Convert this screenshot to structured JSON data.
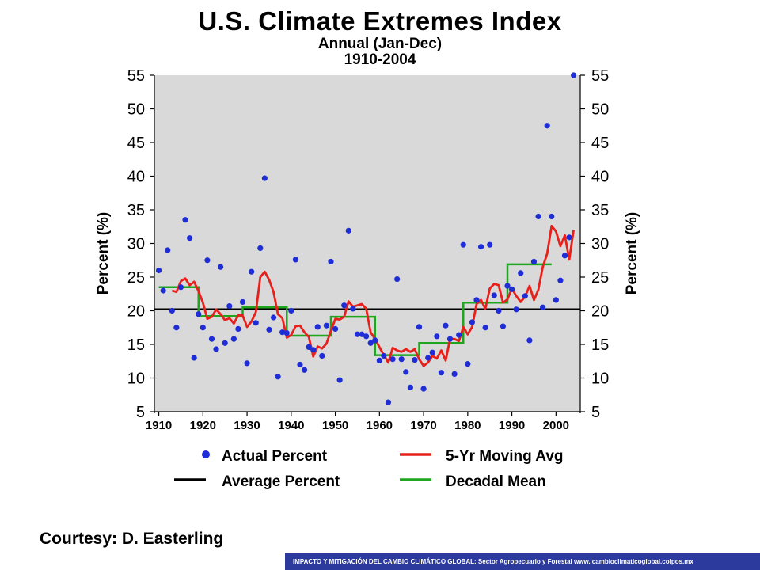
{
  "chart_data": {
    "type": "scatter",
    "title": "U.S. Climate Extremes Index",
    "subtitle": "Annual (Jan-Dec)",
    "period": "1910-2004",
    "ylabel": "Percent (%)",
    "ylabel_right": "Percent (%)",
    "xlabel": "",
    "xlim": [
      1909,
      2005.5
    ],
    "ylim": [
      5,
      55
    ],
    "x_ticks": [
      1910,
      1920,
      1930,
      1940,
      1950,
      1960,
      1970,
      1980,
      1990,
      2000
    ],
    "y_ticks": [
      5,
      10,
      15,
      20,
      25,
      30,
      35,
      40,
      45,
      50,
      55
    ],
    "grid": false,
    "legend_position": "bottom",
    "colors": {
      "plot_background": "#d9d9d9",
      "actual": "#1f2dd6",
      "moving_avg": "#e8201c",
      "average": "#000000",
      "decadal": "#1fa51f"
    },
    "legend": [
      {
        "key": "actual",
        "label": "Actual Percent",
        "style": "dot"
      },
      {
        "key": "moving_avg",
        "label": "5-Yr Moving Avg",
        "style": "line"
      },
      {
        "key": "average",
        "label": "Average Percent",
        "style": "line"
      },
      {
        "key": "decadal",
        "label": "Decadal Mean",
        "style": "line"
      }
    ],
    "average_percent": 20.2,
    "series": [
      {
        "name": "Actual Percent",
        "x": [
          1910,
          1911,
          1912,
          1913,
          1914,
          1915,
          1916,
          1917,
          1918,
          1919,
          1920,
          1921,
          1922,
          1923,
          1924,
          1925,
          1926,
          1927,
          1928,
          1929,
          1930,
          1931,
          1932,
          1933,
          1934,
          1935,
          1936,
          1937,
          1938,
          1939,
          1940,
          1941,
          1942,
          1943,
          1944,
          1945,
          1946,
          1947,
          1948,
          1949,
          1950,
          1951,
          1952,
          1953,
          1954,
          1955,
          1956,
          1957,
          1958,
          1959,
          1960,
          1961,
          1962,
          1963,
          1964,
          1965,
          1966,
          1967,
          1968,
          1969,
          1970,
          1971,
          1972,
          1973,
          1974,
          1975,
          1976,
          1977,
          1978,
          1979,
          1980,
          1981,
          1982,
          1983,
          1984,
          1985,
          1986,
          1987,
          1988,
          1989,
          1990,
          1991,
          1992,
          1993,
          1994,
          1995,
          1996,
          1997,
          1998,
          1999,
          2000,
          2001,
          2002,
          2003,
          2004
        ],
        "values": [
          26,
          23,
          29,
          20,
          17.5,
          23.5,
          33.5,
          30.8,
          13,
          19.5,
          17.5,
          27.5,
          15.8,
          14.3,
          26.5,
          15.2,
          20.7,
          15.8,
          17.3,
          21.3,
          12.2,
          25.8,
          18.2,
          29.3,
          39.7,
          17.2,
          19,
          10.2,
          16.8,
          16.7,
          20,
          27.6,
          12,
          11.2,
          14.6,
          14.2,
          17.6,
          13.3,
          17.8,
          27.3,
          17.3,
          9.7,
          20.8,
          31.9,
          20.3,
          16.5,
          16.5,
          16.2,
          15.2,
          15.6,
          12.6,
          13.3,
          6.4,
          12.8,
          24.7,
          12.8,
          10.9,
          8.6,
          12.7,
          17.6,
          8.4,
          13,
          13.8,
          16.2,
          10.8,
          17.8,
          15.8,
          10.6,
          16.4,
          29.8,
          12.1,
          18.3,
          21.6,
          29.5,
          17.5,
          29.8,
          22.3,
          20,
          17.7,
          23.7,
          23.2,
          20.2,
          25.6,
          22.2,
          15.6,
          27.3,
          34,
          20.5,
          47.5,
          34,
          21.6,
          24.5,
          28.2,
          30.9,
          55
        ]
      },
      {
        "name": "5-Yr Moving Avg",
        "x": [
          1913,
          1914,
          1915,
          1916,
          1917,
          1918,
          1919,
          1920,
          1921,
          1922,
          1923,
          1924,
          1925,
          1926,
          1927,
          1928,
          1929,
          1930,
          1931,
          1932,
          1933,
          1934,
          1935,
          1936,
          1937,
          1938,
          1939,
          1940,
          1941,
          1942,
          1943,
          1944,
          1945,
          1946,
          1947,
          1948,
          1949,
          1950,
          1951,
          1952,
          1953,
          1954,
          1955,
          1956,
          1957,
          1958,
          1959,
          1960,
          1961,
          1962,
          1963,
          1964,
          1965,
          1966,
          1967,
          1968,
          1969,
          1970,
          1971,
          1972,
          1973,
          1974,
          1975,
          1976,
          1977,
          1978,
          1979,
          1980,
          1981,
          1982,
          1983,
          1984,
          1985,
          1986,
          1987,
          1988,
          1989,
          1990,
          1991,
          1992,
          1993,
          1994,
          1995,
          1996,
          1997,
          1998,
          1999,
          2000,
          2001,
          2002,
          2003,
          2004
        ],
        "values": [
          23,
          22.8,
          24.4,
          24.8,
          23.8,
          24.3,
          22.9,
          21.2,
          18.8,
          19.1,
          20.2,
          19.5,
          18.6,
          18.9,
          18.1,
          19.3,
          19.3,
          17.6,
          18.4,
          19.8,
          25,
          25.8,
          24.6,
          22.8,
          19.5,
          18.9,
          16,
          16.4,
          17.7,
          17.8,
          16.8,
          16.1,
          13.2,
          14.7,
          14.4,
          15.1,
          17,
          18.8,
          18.7,
          19.1,
          21.4,
          20.6,
          20.8,
          21,
          20.3,
          16.8,
          15.8,
          14.6,
          13.4,
          12.3,
          14.5,
          14.1,
          13.9,
          14.3,
          13.9,
          14.3,
          12.8,
          11.8,
          12.3,
          13.3,
          12.9,
          14.1,
          12.6,
          15.8,
          15.8,
          15.5,
          17.6,
          16.5,
          17.6,
          21,
          21.6,
          20.3,
          23.3,
          24,
          23.8,
          21.2,
          21.7,
          23.3,
          22.2,
          21.3,
          22.1,
          23.7,
          21.6,
          23.1,
          26.5,
          28.5,
          32.6,
          31.8,
          29.6,
          31.2,
          27.6,
          32
        ]
      },
      {
        "name": "Decadal Mean",
        "segments": [
          {
            "from": 1910,
            "to": 1919,
            "value": 23.5
          },
          {
            "from": 1919,
            "to": 1929,
            "value": 19.2
          },
          {
            "from": 1929,
            "to": 1939,
            "value": 20.5
          },
          {
            "from": 1939,
            "to": 1949,
            "value": 16.3
          },
          {
            "from": 1949,
            "to": 1959,
            "value": 19.1
          },
          {
            "from": 1959,
            "to": 1969,
            "value": 13.4
          },
          {
            "from": 1969,
            "to": 1979,
            "value": 15.2
          },
          {
            "from": 1979,
            "to": 1989,
            "value": 21.2
          },
          {
            "from": 1989,
            "to": 1999,
            "value": 26.9
          }
        ]
      }
    ]
  },
  "credit": "Courtesy: D. Easterling",
  "footer": "IMPACTO Y MITIGACIÓN DEL CAMBIO CLIMÁTICO GLOBAL: Sector Agropecuario y Forestal www. cambioclimaticoglobal.colpos.mx"
}
